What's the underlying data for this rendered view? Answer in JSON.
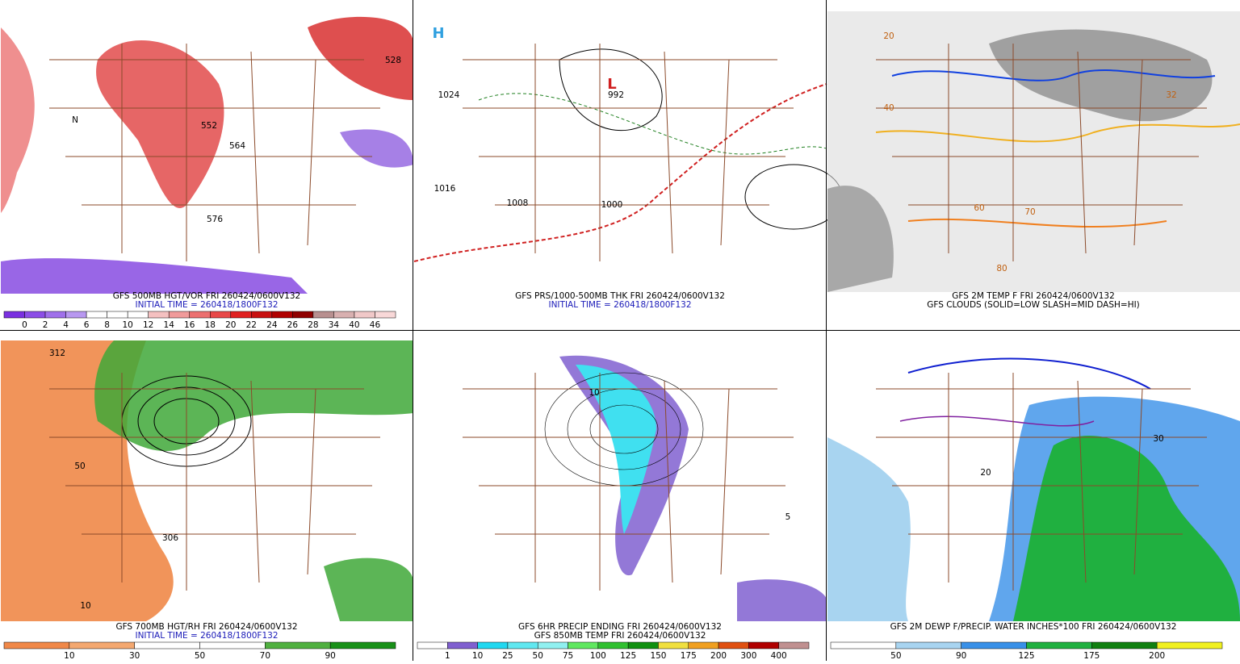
{
  "panels": [
    {
      "captions": [
        "GFS 500MB HGT/VOR FRI 260424/0600V132",
        "INITIAL TIME = 260418/1800F132"
      ],
      "caption_colors": [
        "#000000",
        "#1a1ab8"
      ],
      "labels": [
        "576",
        "552",
        "564",
        "528",
        "N"
      ],
      "colorbar": {
        "labels": [
          "0",
          "2",
          "4",
          "6",
          "8",
          "10",
          "12",
          "14",
          "16",
          "18",
          "20",
          "22",
          "24",
          "26",
          "28",
          "34",
          "40",
          "46"
        ],
        "colors": [
          "#7a30e0",
          "#8c4ee6",
          "#a070ea",
          "#b898f0",
          "#ffffff",
          "#ffffff",
          "#ffffff",
          "#f4c0c0",
          "#f09a9a",
          "#ec7070",
          "#e84848",
          "#e02020",
          "#c81010",
          "#b00000",
          "#900000",
          "#b89090",
          "#d8b0b0",
          "#f0c8c8",
          "#f8d8d8"
        ]
      }
    },
    {
      "captions": [
        "GFS PRS/1000-500MB THK FRI 260424/0600V132",
        "INITIAL TIME = 260418/1800F132"
      ],
      "caption_colors": [
        "#000000",
        "#1a1ab8"
      ],
      "labels": [
        "1024",
        "1016",
        "1008",
        "1000",
        "992",
        "H",
        "L"
      ]
    },
    {
      "captions": [
        "GFS 2M TEMP F FRI 260424/0600V132",
        "GFS CLOUDS (SOLID=LOW SLASH=MID DASH=HI)"
      ],
      "caption_colors": [
        "#000000",
        "#000000"
      ],
      "labels": [
        "20",
        "32",
        "40",
        "60",
        "70",
        "80"
      ]
    },
    {
      "captions": [
        "GFS 700MB HGT/RH FRI 260424/0600V132",
        "INITIAL TIME = 260418/1800F132"
      ],
      "caption_colors": [
        "#000000",
        "#1a1ab8"
      ],
      "labels": [
        "312",
        "50",
        "10",
        "306"
      ],
      "colorbar": {
        "labels": [
          "10",
          "30",
          "50",
          "70",
          "90"
        ],
        "colors": [
          "#f08848",
          "#f4a870",
          "#ffffff",
          "#ffffff",
          "#50b040",
          "#189018"
        ]
      }
    },
    {
      "captions": [
        "GFS 6HR PRECIP ENDING FRI 260424/0600V132",
        "GFS 850MB TEMP FRI 260424/0600V132"
      ],
      "caption_colors": [
        "#000000",
        "#000000"
      ],
      "labels": [
        "10",
        "5"
      ],
      "colorbar": {
        "labels": [
          "1",
          "10",
          "25",
          "50",
          "75",
          "100",
          "125",
          "150",
          "175",
          "200",
          "300",
          "400"
        ],
        "colors": [
          "#ffffff",
          "#8060d0",
          "#20d8f0",
          "#60e8f0",
          "#90f0f0",
          "#60e860",
          "#30c030",
          "#109010",
          "#f0e040",
          "#f0a020",
          "#e05010",
          "#b00000",
          "#c09090"
        ]
      }
    },
    {
      "captions": [
        "GFS 2M DEWP F/PRECIP. WATER INCHES*100 FRI 260424/0600V132"
      ],
      "caption_colors": [
        "#000000"
      ],
      "labels": [
        "20",
        "30"
      ],
      "colorbar": {
        "labels": [
          "50",
          "90",
          "125",
          "175",
          "200"
        ],
        "colors": [
          "#ffffff",
          "#a8d4f0",
          "#3890e8",
          "#20b040",
          "#108010",
          "#f0f020"
        ]
      }
    }
  ]
}
